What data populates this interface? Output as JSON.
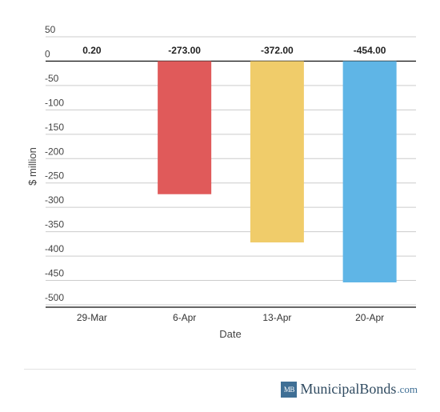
{
  "chart_data": {
    "type": "bar",
    "title": "",
    "xlabel": "Date",
    "ylabel": "$ million",
    "ylim": [
      -500,
      50
    ],
    "yticks": [
      50,
      0,
      -50,
      -100,
      -150,
      -200,
      -250,
      -300,
      -350,
      -400,
      -450,
      -500
    ],
    "grid": true,
    "categories": [
      "29-Mar",
      "6-Apr",
      "13-Apr",
      "20-Apr"
    ],
    "values": [
      0.2,
      -273.0,
      -372.0,
      -454.0
    ],
    "data_labels": [
      "0.20",
      "-273.00",
      "-372.00",
      "-454.00"
    ],
    "colors": [
      "#e05a5a",
      "#e05a5a",
      "#f0cc6a",
      "#5fb5e6"
    ]
  },
  "brand": {
    "badge": "MB",
    "name": "MunicipalBonds",
    "tld": ".com",
    "badge_color": "#3f6f95"
  }
}
